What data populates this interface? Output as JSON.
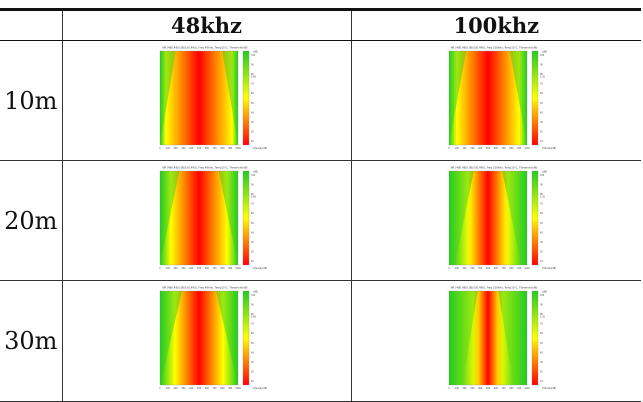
{
  "table": {
    "columns": [
      "",
      "48khz",
      "100khz"
    ],
    "rows": [
      {
        "label": "10m",
        "cells": [
          {
            "caption": "NR (480,480) SB(530,490), Freq 48kHz, Temp15℃, Threshold(dB)",
            "top_value": "0.66",
            "unit": "(dB)",
            "axis_x": [
              "0",
              "100",
              "200",
              "300",
              "400",
              "500",
              "600",
              "700",
              "800",
              "900",
              "1000"
            ],
            "colorbar_ticks": [
              "100",
              "90",
              "80",
              "70",
              "60",
              "50",
              "40",
              "30",
              "20",
              "10"
            ],
            "colorbar_caption": "Intensity(dB)"
          },
          {
            "caption": "NR (480,480) SB(530,490), Freq 100kHz, Temp15℃, Threshold(dB)",
            "top_value": "1.00",
            "unit": "(dB)",
            "axis_x": [
              "0",
              "100",
              "200",
              "300",
              "400",
              "500",
              "600",
              "700",
              "800",
              "900",
              "1000"
            ],
            "colorbar_ticks": [
              "100",
              "90",
              "80",
              "70",
              "60",
              "50",
              "40",
              "30",
              "20",
              "10"
            ],
            "colorbar_caption": "Intensity(dB)"
          }
        ]
      },
      {
        "label": "20m",
        "cells": [
          {
            "caption": "NR (480,480) SB(530,490), Freq 48kHz, Temp15℃, Threshold(dB)",
            "top_value": "0.66",
            "unit": "(dB)",
            "axis_x": [
              "0",
              "100",
              "200",
              "300",
              "400",
              "500",
              "600",
              "700",
              "800",
              "900",
              "1000"
            ],
            "colorbar_ticks": [
              "100",
              "90",
              "80",
              "70",
              "60",
              "50",
              "40",
              "30",
              "20",
              "10"
            ],
            "colorbar_caption": "Intensity(dB)"
          },
          {
            "caption": "NR (480,480) SB(530,490), Freq 100kHz, Temp15℃, Threshold(dB)",
            "top_value": "1.00",
            "unit": "(dB)",
            "axis_x": [
              "0",
              "100",
              "200",
              "300",
              "400",
              "500",
              "600",
              "700",
              "800",
              "900",
              "1000"
            ],
            "colorbar_ticks": [
              "100",
              "90",
              "80",
              "70",
              "60",
              "50",
              "40",
              "30",
              "20",
              "10"
            ],
            "colorbar_caption": "Intensity(dB)"
          }
        ]
      },
      {
        "label": "30m",
        "cells": [
          {
            "caption": "NR (480,480) SB(530,490), Freq 48kHz, Temp15℃, Threshold(dB)",
            "top_value": "0.66",
            "unit": "(dB)",
            "axis_x": [
              "0",
              "100",
              "200",
              "300",
              "400",
              "500",
              "600",
              "700",
              "800",
              "900",
              "1000"
            ],
            "colorbar_ticks": [
              "100",
              "90",
              "80",
              "70",
              "60",
              "50",
              "40",
              "30",
              "20",
              "10"
            ],
            "colorbar_caption": "Intensity(dB)"
          },
          {
            "caption": "NR (480,480) SB(530,490), Freq 100kHz, Temp15℃, Threshold(dB)",
            "top_value": "1.00",
            "unit": "(dB)",
            "axis_x": [
              "0",
              "100",
              "200",
              "300",
              "400",
              "500",
              "600",
              "700",
              "800",
              "900",
              "1000"
            ],
            "colorbar_ticks": [
              "100",
              "90",
              "80",
              "70",
              "60",
              "50",
              "40",
              "30",
              "20",
              "10"
            ],
            "colorbar_caption": "Intensity(dB)"
          }
        ]
      }
    ]
  },
  "colors": {
    "high": "#ff0000",
    "mid": "#ffff00",
    "low": "#22cc22"
  }
}
